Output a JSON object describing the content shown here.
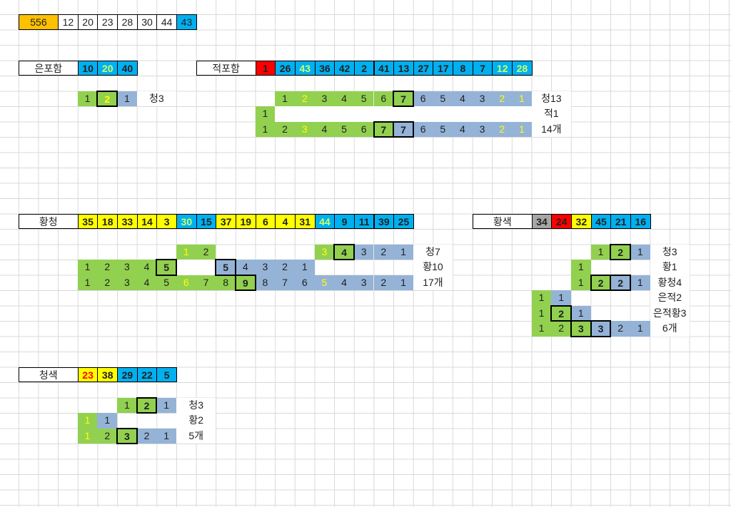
{
  "palette": {
    "orange": "#FFC000",
    "cyan": "#00B0F0",
    "red": "#FF0000",
    "yellow": "#FFFF00",
    "gray": "#A6A6A6",
    "green": "#92D050",
    "blue": "#95B3D7",
    "white": "#FFFFFF",
    "ink": "#1F1F1F",
    "lime": "#CCFF66",
    "gridline": "#D9D9D9"
  },
  "rows": [
    {
      "name": "totals-row",
      "kind": "header",
      "r": 1,
      "cells": [
        {
          "v": "556",
          "c": 0,
          "span": 2,
          "bg": "orange"
        },
        {
          "v": "12",
          "c": 2
        },
        {
          "v": "20",
          "c": 3
        },
        {
          "v": "23",
          "c": 4
        },
        {
          "v": "28",
          "c": 5
        },
        {
          "v": "30",
          "c": 6
        },
        {
          "v": "44",
          "c": 7
        },
        {
          "v": "43",
          "c": 8,
          "bg": "cyan"
        }
      ]
    },
    {
      "name": "silver-group-header",
      "kind": "header",
      "r": 4,
      "cells": [
        {
          "v": "은포함",
          "c": 0,
          "span": 3,
          "kind": "group"
        },
        {
          "v": "10",
          "c": 3,
          "bg": "cyan",
          "bold": true
        },
        {
          "v": "20",
          "c": 4,
          "bg": "cyan",
          "bold": true,
          "fg": "lime"
        },
        {
          "v": "40",
          "c": 5,
          "bg": "cyan",
          "bold": true
        }
      ]
    },
    {
      "name": "red-group-header",
      "kind": "header",
      "r": 4,
      "cells": [
        {
          "v": "적포함",
          "c": 9,
          "span": 3,
          "kind": "group"
        },
        {
          "v": "1",
          "c": 12,
          "bg": "red",
          "bold": true
        },
        {
          "v": "26",
          "c": 13,
          "bg": "cyan",
          "bold": true
        },
        {
          "v": "43",
          "c": 14,
          "bg": "cyan",
          "bold": true,
          "fg": "lime"
        },
        {
          "v": "36",
          "c": 15,
          "bg": "cyan",
          "bold": true
        },
        {
          "v": "42",
          "c": 16,
          "bg": "cyan",
          "bold": true
        },
        {
          "v": "2",
          "c": 17,
          "bg": "cyan",
          "bold": true
        },
        {
          "v": "41",
          "c": 18,
          "bg": "cyan",
          "bold": true
        },
        {
          "v": "13",
          "c": 19,
          "bg": "cyan",
          "bold": true
        },
        {
          "v": "27",
          "c": 20,
          "bg": "cyan",
          "bold": true
        },
        {
          "v": "17",
          "c": 21,
          "bg": "cyan",
          "bold": true
        },
        {
          "v": "8",
          "c": 22,
          "bg": "cyan",
          "bold": true
        },
        {
          "v": "7",
          "c": 23,
          "bg": "cyan",
          "bold": true
        },
        {
          "v": "12",
          "c": 24,
          "bg": "cyan",
          "bold": true,
          "fg": "lime"
        },
        {
          "v": "28",
          "c": 25,
          "bg": "cyan",
          "bold": true,
          "fg": "lime"
        }
      ]
    },
    {
      "name": "silver-run",
      "kind": "sub",
      "r": 6,
      "cells": [
        {
          "v": "1",
          "c": 3,
          "bg": "green"
        },
        {
          "v": "2",
          "c": 4,
          "bg": "green",
          "fg": "yellow",
          "thick": true
        },
        {
          "v": "1",
          "c": 5,
          "bg": "blue"
        },
        {
          "v": "청3",
          "c": 6,
          "span": 2,
          "kind": "label"
        }
      ]
    },
    {
      "name": "red-run-1",
      "kind": "sub",
      "r": 6,
      "cells": [
        {
          "v": "1",
          "c": 13,
          "bg": "green"
        },
        {
          "v": "2",
          "c": 14,
          "bg": "green",
          "fg": "yellow"
        },
        {
          "v": "3",
          "c": 15,
          "bg": "green"
        },
        {
          "v": "4",
          "c": 16,
          "bg": "green"
        },
        {
          "v": "5",
          "c": 17,
          "bg": "green"
        },
        {
          "v": "6",
          "c": 18,
          "bg": "green"
        },
        {
          "v": "7",
          "c": 19,
          "bg": "green",
          "thick": true
        },
        {
          "v": "6",
          "c": 20,
          "bg": "blue"
        },
        {
          "v": "5",
          "c": 21,
          "bg": "blue"
        },
        {
          "v": "4",
          "c": 22,
          "bg": "blue"
        },
        {
          "v": "3",
          "c": 23,
          "bg": "blue"
        },
        {
          "v": "2",
          "c": 24,
          "bg": "blue",
          "fg": "yellow"
        },
        {
          "v": "1",
          "c": 25,
          "bg": "blue",
          "fg": "yellow"
        },
        {
          "v": "청13",
          "c": 26,
          "span": 2,
          "kind": "label"
        }
      ]
    },
    {
      "name": "red-run-2",
      "kind": "sub",
      "r": 7,
      "cells": [
        {
          "v": "1",
          "c": 12,
          "bg": "green"
        },
        {
          "c": 13,
          "span": 13,
          "kind": "band"
        },
        {
          "v": "적1",
          "c": 26,
          "span": 2,
          "kind": "label"
        }
      ]
    },
    {
      "name": "red-run-3",
      "kind": "sub",
      "r": 8,
      "cells": [
        {
          "v": "1",
          "c": 12,
          "bg": "green"
        },
        {
          "v": "2",
          "c": 13,
          "bg": "green"
        },
        {
          "v": "3",
          "c": 14,
          "bg": "green",
          "fg": "yellow"
        },
        {
          "v": "4",
          "c": 15,
          "bg": "green"
        },
        {
          "v": "5",
          "c": 16,
          "bg": "green"
        },
        {
          "v": "6",
          "c": 17,
          "bg": "green"
        },
        {
          "v": "7",
          "c": 18,
          "bg": "green",
          "thick": true
        },
        {
          "v": "7",
          "c": 19,
          "bg": "blue",
          "thick": true
        },
        {
          "v": "6",
          "c": 20,
          "bg": "blue"
        },
        {
          "v": "5",
          "c": 21,
          "bg": "blue"
        },
        {
          "v": "4",
          "c": 22,
          "bg": "blue"
        },
        {
          "v": "3",
          "c": 23,
          "bg": "blue"
        },
        {
          "v": "2",
          "c": 24,
          "bg": "blue",
          "fg": "yellow"
        },
        {
          "v": "1",
          "c": 25,
          "bg": "blue",
          "fg": "yellow"
        },
        {
          "v": "14개",
          "c": 26,
          "span": 2,
          "kind": "label"
        }
      ]
    },
    {
      "name": "yellowblue-group-header",
      "kind": "header",
      "r": 14,
      "cells": [
        {
          "v": "황청",
          "c": 0,
          "span": 3,
          "kind": "group"
        },
        {
          "v": "35",
          "c": 3,
          "bg": "yellow",
          "bold": true
        },
        {
          "v": "18",
          "c": 4,
          "bg": "yellow",
          "bold": true
        },
        {
          "v": "33",
          "c": 5,
          "bg": "yellow",
          "bold": true
        },
        {
          "v": "14",
          "c": 6,
          "bg": "yellow",
          "bold": true
        },
        {
          "v": "3",
          "c": 7,
          "bg": "yellow",
          "bold": true
        },
        {
          "v": "30",
          "c": 8,
          "bg": "cyan",
          "bold": true,
          "fg": "lime"
        },
        {
          "v": "15",
          "c": 9,
          "bg": "cyan",
          "bold": true
        },
        {
          "v": "37",
          "c": 10,
          "bg": "yellow",
          "bold": true
        },
        {
          "v": "19",
          "c": 11,
          "bg": "yellow",
          "bold": true
        },
        {
          "v": "6",
          "c": 12,
          "bg": "yellow",
          "bold": true
        },
        {
          "v": "4",
          "c": 13,
          "bg": "yellow",
          "bold": true
        },
        {
          "v": "31",
          "c": 14,
          "bg": "yellow",
          "bold": true
        },
        {
          "v": "44",
          "c": 15,
          "bg": "cyan",
          "bold": true,
          "fg": "lime"
        },
        {
          "v": "9",
          "c": 16,
          "bg": "cyan",
          "bold": true
        },
        {
          "v": "11",
          "c": 17,
          "bg": "cyan",
          "bold": true
        },
        {
          "v": "39",
          "c": 18,
          "bg": "cyan",
          "bold": true
        },
        {
          "v": "25",
          "c": 19,
          "bg": "cyan",
          "bold": true
        }
      ]
    },
    {
      "name": "yellow-group-header",
      "kind": "header",
      "r": 14,
      "cells": [
        {
          "v": "황색",
          "c": 23,
          "span": 3,
          "kind": "group"
        },
        {
          "v": "34",
          "c": 26,
          "bg": "gray",
          "bold": true
        },
        {
          "v": "24",
          "c": 27,
          "bg": "red",
          "bold": true
        },
        {
          "v": "32",
          "c": 28,
          "bg": "yellow",
          "bold": true
        },
        {
          "v": "45",
          "c": 29,
          "bg": "cyan",
          "bold": true
        },
        {
          "v": "21",
          "c": 30,
          "bg": "cyan",
          "bold": true
        },
        {
          "v": "16",
          "c": 31,
          "bg": "cyan",
          "bold": true
        }
      ]
    },
    {
      "name": "yellowblue-run-1",
      "kind": "sub",
      "r": 16,
      "cells": [
        {
          "v": "1",
          "c": 8,
          "bg": "green",
          "fg": "yellow"
        },
        {
          "v": "2",
          "c": 9,
          "bg": "green"
        },
        {
          "v": "3",
          "c": 15,
          "bg": "green",
          "fg": "yellow"
        },
        {
          "v": "4",
          "c": 16,
          "bg": "green",
          "thick": true
        },
        {
          "v": "3",
          "c": 17,
          "bg": "blue"
        },
        {
          "v": "2",
          "c": 18,
          "bg": "blue"
        },
        {
          "v": "1",
          "c": 19,
          "bg": "blue"
        },
        {
          "v": "청7",
          "c": 20,
          "span": 2,
          "kind": "label"
        }
      ]
    },
    {
      "name": "yellowblue-run-2",
      "kind": "sub",
      "r": 17,
      "cells": [
        {
          "v": "1",
          "c": 3,
          "bg": "green"
        },
        {
          "v": "2",
          "c": 4,
          "bg": "green"
        },
        {
          "v": "3",
          "c": 5,
          "bg": "green"
        },
        {
          "v": "4",
          "c": 6,
          "bg": "green"
        },
        {
          "v": "5",
          "c": 7,
          "bg": "green",
          "thick": true
        },
        {
          "c": 8,
          "span": 2,
          "kind": "band"
        },
        {
          "v": "5",
          "c": 10,
          "bg": "blue",
          "thick": true
        },
        {
          "v": "4",
          "c": 11,
          "bg": "blue"
        },
        {
          "v": "3",
          "c": 12,
          "bg": "blue"
        },
        {
          "v": "2",
          "c": 13,
          "bg": "blue"
        },
        {
          "v": "1",
          "c": 14,
          "bg": "blue"
        },
        {
          "v": "황10",
          "c": 20,
          "span": 2,
          "kind": "label"
        }
      ]
    },
    {
      "name": "yellowblue-run-3",
      "kind": "sub",
      "r": 18,
      "cells": [
        {
          "v": "1",
          "c": 3,
          "bg": "green"
        },
        {
          "v": "2",
          "c": 4,
          "bg": "green"
        },
        {
          "v": "3",
          "c": 5,
          "bg": "green"
        },
        {
          "v": "4",
          "c": 6,
          "bg": "green"
        },
        {
          "v": "5",
          "c": 7,
          "bg": "green"
        },
        {
          "v": "6",
          "c": 8,
          "bg": "green",
          "fg": "yellow"
        },
        {
          "v": "7",
          "c": 9,
          "bg": "green"
        },
        {
          "v": "8",
          "c": 10,
          "bg": "green"
        },
        {
          "v": "9",
          "c": 11,
          "bg": "green",
          "thick": true
        },
        {
          "v": "8",
          "c": 12,
          "bg": "blue"
        },
        {
          "v": "7",
          "c": 13,
          "bg": "blue"
        },
        {
          "v": "6",
          "c": 14,
          "bg": "blue"
        },
        {
          "v": "5",
          "c": 15,
          "bg": "blue",
          "fg": "yellow"
        },
        {
          "v": "4",
          "c": 16,
          "bg": "blue"
        },
        {
          "v": "3",
          "c": 17,
          "bg": "blue"
        },
        {
          "v": "2",
          "c": 18,
          "bg": "blue"
        },
        {
          "v": "1",
          "c": 19,
          "bg": "blue"
        },
        {
          "v": "17개",
          "c": 20,
          "span": 2,
          "kind": "label"
        }
      ]
    },
    {
      "name": "yellow-run-1",
      "kind": "sub",
      "r": 16,
      "cells": [
        {
          "v": "1",
          "c": 29,
          "bg": "green"
        },
        {
          "v": "2",
          "c": 30,
          "bg": "green",
          "thick": true
        },
        {
          "v": "1",
          "c": 31,
          "bg": "blue"
        },
        {
          "v": "청3",
          "c": 32,
          "span": 2,
          "kind": "label"
        }
      ]
    },
    {
      "name": "yellow-run-2",
      "kind": "sub",
      "r": 17,
      "cells": [
        {
          "v": "1",
          "c": 28,
          "bg": "green"
        },
        {
          "v": "황1",
          "c": 32,
          "span": 2,
          "kind": "label"
        }
      ]
    },
    {
      "name": "yellow-run-3",
      "kind": "sub",
      "r": 18,
      "cells": [
        {
          "v": "1",
          "c": 28,
          "bg": "green"
        },
        {
          "v": "2",
          "c": 29,
          "bg": "green",
          "thick": true
        },
        {
          "v": "2",
          "c": 30,
          "bg": "blue",
          "thick": true
        },
        {
          "v": "1",
          "c": 31,
          "bg": "blue"
        },
        {
          "v": "황청4",
          "c": 32,
          "span": 2,
          "kind": "label"
        }
      ]
    },
    {
      "name": "yellow-run-4",
      "kind": "sub",
      "r": 19,
      "cells": [
        {
          "v": "1",
          "c": 26,
          "bg": "green"
        },
        {
          "v": "1",
          "c": 27,
          "bg": "blue"
        },
        {
          "v": "은적2",
          "c": 32,
          "span": 2,
          "kind": "label"
        }
      ]
    },
    {
      "name": "yellow-run-5",
      "kind": "sub",
      "r": 20,
      "cells": [
        {
          "v": "1",
          "c": 26,
          "bg": "green"
        },
        {
          "v": "2",
          "c": 27,
          "bg": "green",
          "thick": true
        },
        {
          "v": "1",
          "c": 28,
          "bg": "blue"
        },
        {
          "v": "은적황3",
          "c": 32,
          "span": 2,
          "kind": "label"
        }
      ]
    },
    {
      "name": "yellow-run-6",
      "kind": "sub",
      "r": 21,
      "cells": [
        {
          "v": "1",
          "c": 26,
          "bg": "green"
        },
        {
          "v": "2",
          "c": 27,
          "bg": "green"
        },
        {
          "v": "3",
          "c": 28,
          "bg": "green",
          "thick": true
        },
        {
          "v": "3",
          "c": 29,
          "bg": "blue",
          "thick": true
        },
        {
          "v": "2",
          "c": 30,
          "bg": "blue"
        },
        {
          "v": "1",
          "c": 31,
          "bg": "blue"
        },
        {
          "v": "6개",
          "c": 32,
          "span": 2,
          "kind": "label"
        }
      ]
    },
    {
      "name": "blue-group-header",
      "kind": "header",
      "r": 24,
      "cells": [
        {
          "v": "청색",
          "c": 0,
          "span": 3,
          "kind": "group"
        },
        {
          "v": "23",
          "c": 3,
          "bg": "yellow",
          "bold": true,
          "fg": "red"
        },
        {
          "v": "38",
          "c": 4,
          "bg": "yellow",
          "bold": true
        },
        {
          "v": "29",
          "c": 5,
          "bg": "cyan",
          "bold": true
        },
        {
          "v": "22",
          "c": 6,
          "bg": "cyan",
          "bold": true
        },
        {
          "v": "5",
          "c": 7,
          "bg": "cyan",
          "bold": true
        }
      ]
    },
    {
      "name": "blue-run-1",
      "kind": "sub",
      "r": 26,
      "cells": [
        {
          "v": "1",
          "c": 5,
          "bg": "green"
        },
        {
          "v": "2",
          "c": 6,
          "bg": "green",
          "thick": true
        },
        {
          "v": "1",
          "c": 7,
          "bg": "blue"
        },
        {
          "v": "청3",
          "c": 8,
          "span": 2,
          "kind": "label"
        }
      ]
    },
    {
      "name": "blue-run-2",
      "kind": "sub",
      "r": 27,
      "cells": [
        {
          "v": "1",
          "c": 3,
          "bg": "green",
          "fg": "yellow"
        },
        {
          "v": "1",
          "c": 4,
          "bg": "blue"
        },
        {
          "v": "황2",
          "c": 8,
          "span": 2,
          "kind": "label"
        }
      ]
    },
    {
      "name": "blue-run-3",
      "kind": "sub",
      "r": 28,
      "cells": [
        {
          "v": "1",
          "c": 3,
          "bg": "green",
          "fg": "yellow"
        },
        {
          "v": "2",
          "c": 4,
          "bg": "green"
        },
        {
          "v": "3",
          "c": 5,
          "bg": "green",
          "thick": true
        },
        {
          "v": "2",
          "c": 6,
          "bg": "blue"
        },
        {
          "v": "1",
          "c": 7,
          "bg": "blue"
        },
        {
          "v": "5개",
          "c": 8,
          "span": 2,
          "kind": "label"
        }
      ]
    }
  ]
}
